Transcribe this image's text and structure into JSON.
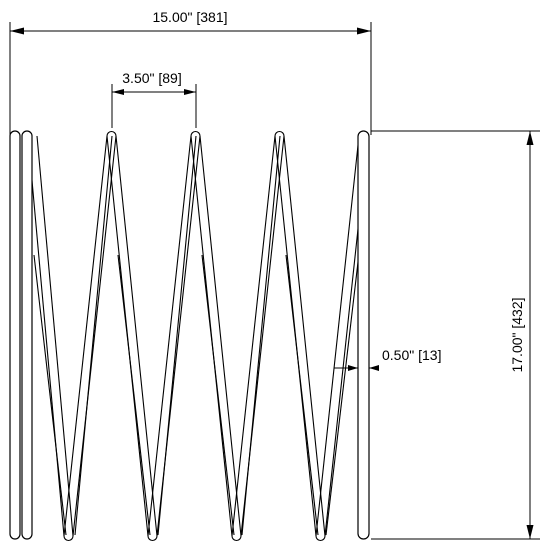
{
  "drawing": {
    "overall_width_label": "15.00\" [381]",
    "pitch_label": "3.50\" [89]",
    "wire_diameter_label": "0.50\" [13]",
    "free_length_label": "17.00\" [432]"
  }
}
